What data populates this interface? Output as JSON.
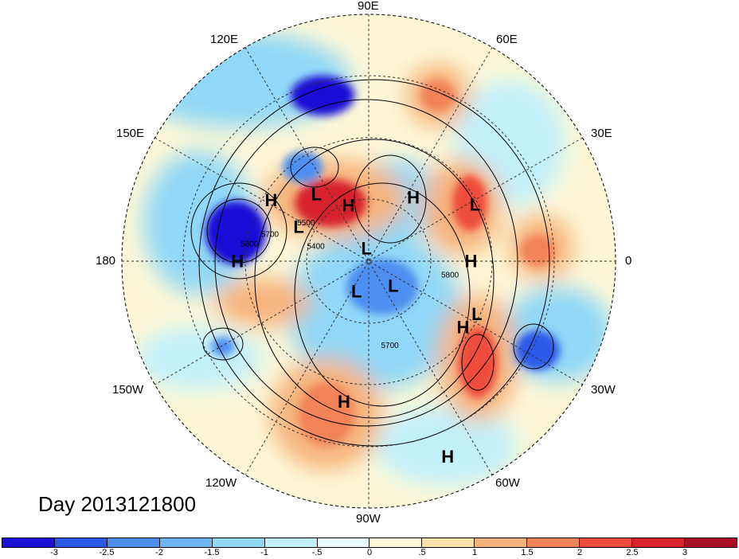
{
  "title": "Day 2013121800",
  "longitude_labels": {
    "lon_90E": "90E",
    "lon_60E": "60E",
    "lon_30E": "30E",
    "lon_0": "0",
    "lon_30W": "30W",
    "lon_60W": "60W",
    "lon_90W": "90W",
    "lon_120W": "120W",
    "lon_150W": "150W",
    "lon_180": "180",
    "lon_150E": "150E",
    "lon_120E": "120E"
  },
  "pressure_centers": [
    {
      "label": "H",
      "lon": 55,
      "lat": 55
    },
    {
      "label": "L",
      "lon": 28,
      "lat": 38
    },
    {
      "label": "L",
      "lon": 128,
      "lat": 52
    },
    {
      "label": "H",
      "lon": 148,
      "lat": 40
    },
    {
      "label": "H",
      "lon": 110,
      "lat": 63
    },
    {
      "label": "L",
      "lon": 154,
      "lat": 55
    },
    {
      "label": "H",
      "lon": 180,
      "lat": 34
    },
    {
      "label": "L",
      "lon": 100,
      "lat": 84
    },
    {
      "label": "H",
      "lon": 0,
      "lat": 45
    },
    {
      "label": "L",
      "lon": -112,
      "lat": 75
    },
    {
      "label": "L",
      "lon": -45,
      "lat": 74
    },
    {
      "label": "H",
      "lon": -35,
      "lat": 40
    },
    {
      "label": "L",
      "lon": -26,
      "lat": 38
    },
    {
      "label": "H",
      "lon": -100,
      "lat": 30
    },
    {
      "label": "H",
      "lon": -68,
      "lat": 9
    }
  ],
  "contour_labels": [
    {
      "text": "5500",
      "lon": 149,
      "lat": 57
    },
    {
      "text": "5700",
      "lon": 165,
      "lat": 45
    },
    {
      "text": "5400",
      "lon": 165,
      "lat": 65
    },
    {
      "text": "5800",
      "lon": 172,
      "lat": 38
    },
    {
      "text": "5800",
      "lon": -10,
      "lat": 53
    },
    {
      "text": "5700",
      "lon": -76,
      "lat": 51
    }
  ],
  "colorbar": {
    "colors": [
      "#1d10d6",
      "#2c5ae8",
      "#4d8ff0",
      "#6fb4f3",
      "#8fd8f7",
      "#c2f1fa",
      "#eafcfd",
      "#fdf7d6",
      "#fbe2a6",
      "#f6b27a",
      "#f28356",
      "#ee4d3b",
      "#d7242d",
      "#a90f22"
    ],
    "tick_labels": [
      "-3",
      "-2.5",
      "-2",
      "-1.5",
      "-1",
      "-.5",
      "0",
      ".5",
      "1",
      "1.5",
      "2",
      "2.5",
      "3"
    ]
  }
}
